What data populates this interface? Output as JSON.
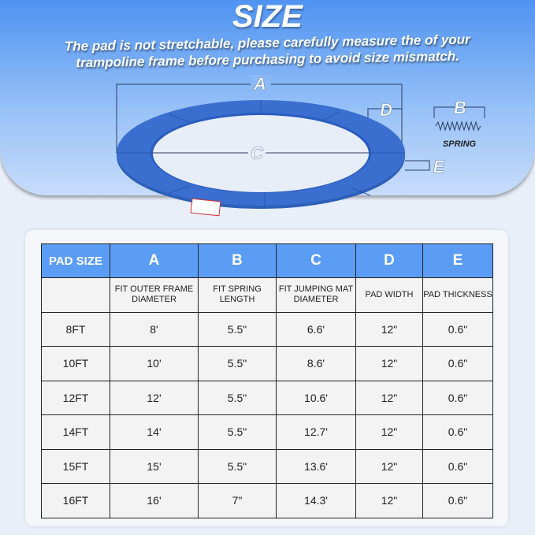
{
  "title": "SIZE",
  "subtitle_line1": "The pad is not stretchable, please carefully measure the of your",
  "subtitle_line2": "trampoline frame before purchasing to avoid size mismatch.",
  "diagram": {
    "label_a": "A",
    "label_b": "B",
    "label_c": "C",
    "label_d": "D",
    "label_e": "E",
    "spring": "SPRING",
    "pad_color": "#3a6fd0"
  },
  "table": {
    "headers": [
      "PAD SIZE",
      "A",
      "B",
      "C",
      "D",
      "E"
    ],
    "descriptions": [
      "",
      "FIT OUTER FRAME DIAMETER",
      "FIT SPRING LENGTH",
      "FIT JUMPING MAT DIAMETER",
      "PAD WIDTH",
      "PAD THICKNESS"
    ],
    "rows": [
      [
        "8FT",
        "8'",
        "5.5\"",
        "6.6'",
        "12\"",
        "0.6\""
      ],
      [
        "10FT",
        "10'",
        "5.5\"",
        "8.6'",
        "12\"",
        "0.6\""
      ],
      [
        "12FT",
        "12'",
        "5.5\"",
        "10.6'",
        "12\"",
        "0.6\""
      ],
      [
        "14FT",
        "14'",
        "5.5\"",
        "12.7'",
        "12\"",
        "0.6\""
      ],
      [
        "15FT",
        "15'",
        "5.5\"",
        "13.6'",
        "12\"",
        "0.6\""
      ],
      [
        "16FT",
        "16'",
        "7\"",
        "14.3'",
        "12\"",
        "0.6\""
      ]
    ],
    "header_color": "#5b9cf5"
  }
}
